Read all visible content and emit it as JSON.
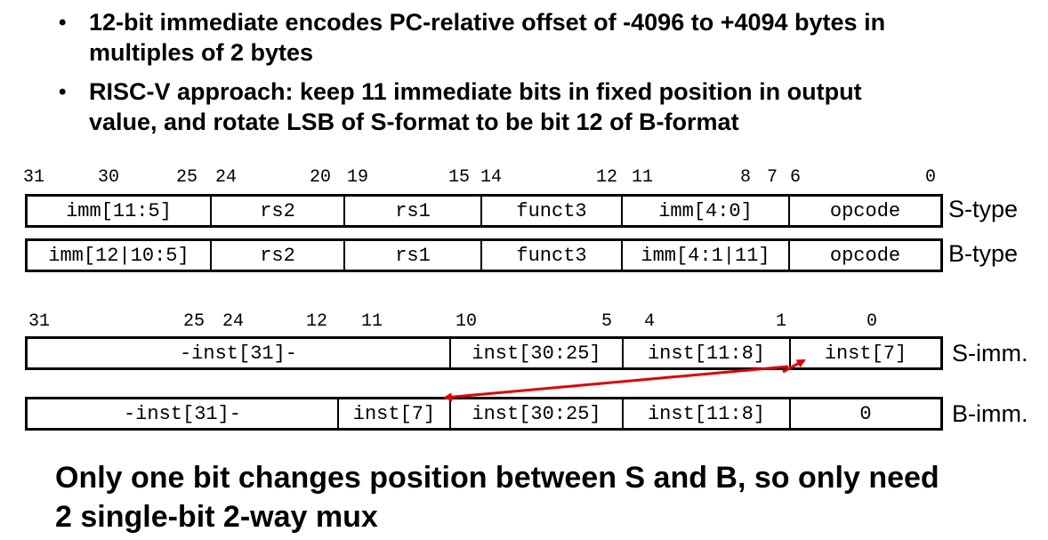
{
  "bullets": [
    {
      "lines": [
        "12-bit immediate encodes PC-relative offset of -4096 to +4094 bytes in",
        "multiples of 2 bytes"
      ]
    },
    {
      "lines": [
        "RISC-V approach: keep 11 immediate bits in fixed position in output",
        "value, and rotate LSB of S-format to be bit 12 of B-format"
      ]
    }
  ],
  "bullet_symbol": "•",
  "format_bit_numbers": [
    "31",
    "30",
    "25",
    "24",
    "20",
    "19",
    "15",
    "14",
    "12",
    "11",
    "8",
    "7",
    "6",
    "0"
  ],
  "s_type": {
    "fields": [
      "imm[11:5]",
      "rs2",
      "rs1",
      "funct3",
      "imm[4:0]",
      "opcode"
    ],
    "label": "S-type"
  },
  "b_type": {
    "fields": [
      "imm[12|10:5]",
      "rs2",
      "rs1",
      "funct3",
      "imm[4:1|11]",
      "opcode"
    ],
    "label": "B-type"
  },
  "imm_bit_numbers": [
    "31",
    "25",
    "24",
    "12",
    "11",
    "10",
    "5",
    "4",
    "1",
    "0"
  ],
  "s_imm": {
    "fields": [
      "-inst[31]-",
      "inst[30:25]",
      "inst[11:8]",
      "inst[7]"
    ],
    "label": "S-imm."
  },
  "b_imm": {
    "fields": [
      "-inst[31]-",
      "inst[7]",
      "inst[30:25]",
      "inst[11:8]",
      "0"
    ],
    "label": "B-imm."
  },
  "arrow_color": "#e00000",
  "conclusion": [
    "Only one bit changes position between S and B, so only need",
    "2 single-bit 2-way mux"
  ]
}
